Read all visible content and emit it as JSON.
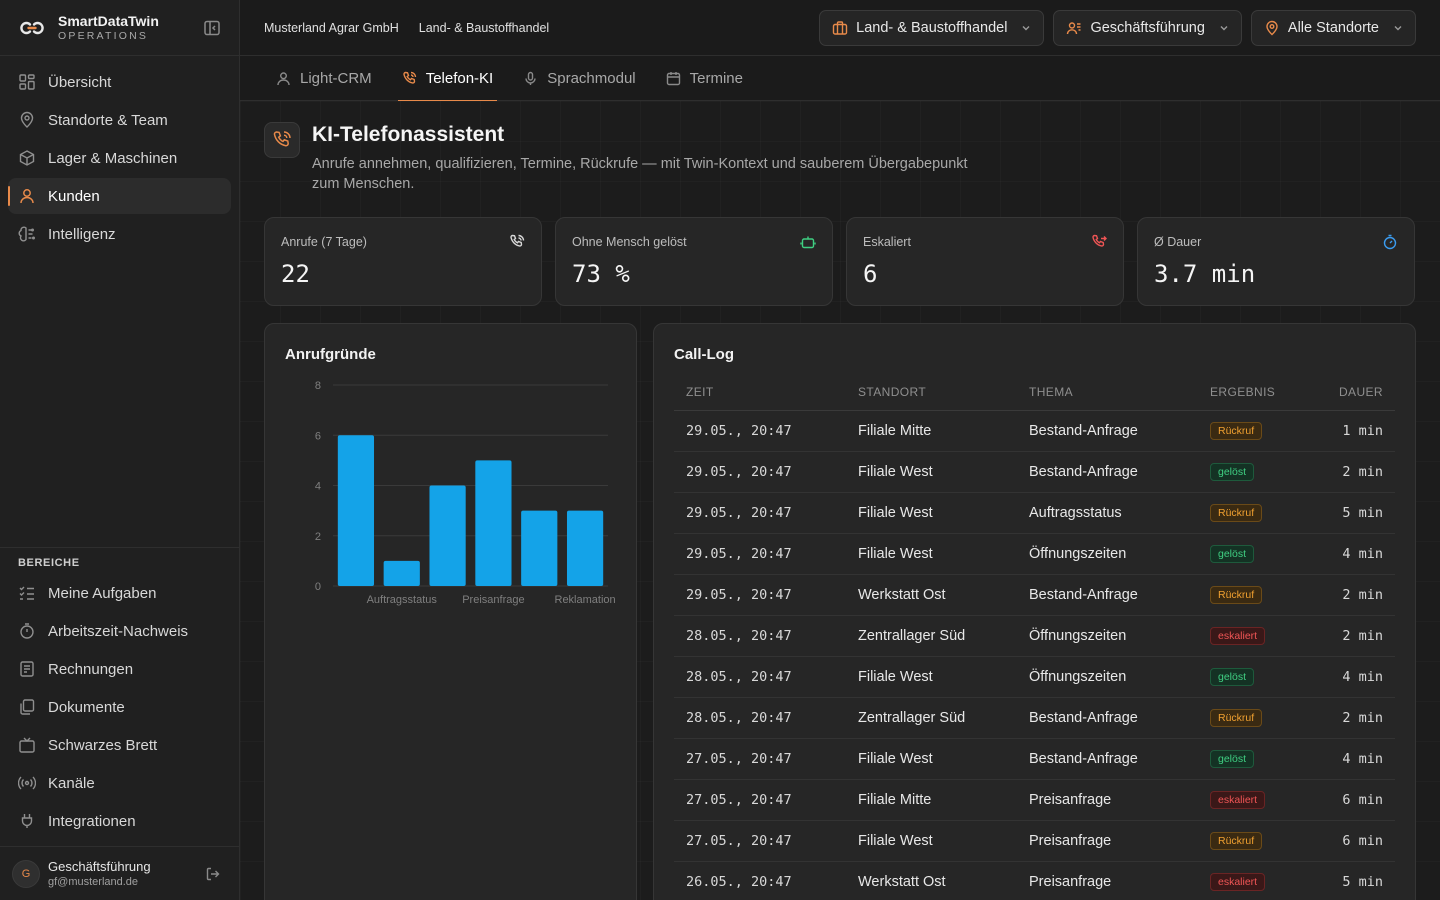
{
  "brand": {
    "name": "SmartDataTwin",
    "sub": "OPERATIONS"
  },
  "sidebar": {
    "items": [
      {
        "label": "Übersicht",
        "icon": "grid-icon"
      },
      {
        "label": "Standorte & Team",
        "icon": "map-pin-icon"
      },
      {
        "label": "Lager & Maschinen",
        "icon": "box-icon"
      },
      {
        "label": "Kunden",
        "icon": "user-icon",
        "active": true
      },
      {
        "label": "Intelligenz",
        "icon": "brain-icon"
      }
    ],
    "section_label": "BEREICHE",
    "section_items": [
      {
        "label": "Meine Aufgaben",
        "icon": "checklist-icon"
      },
      {
        "label": "Arbeitszeit-Nachweis",
        "icon": "stopwatch-icon"
      },
      {
        "label": "Rechnungen",
        "icon": "receipt-icon"
      },
      {
        "label": "Dokumente",
        "icon": "documents-icon"
      },
      {
        "label": "Schwarzes Brett",
        "icon": "board-icon"
      },
      {
        "label": "Kanäle",
        "icon": "broadcast-icon"
      },
      {
        "label": "Integrationen",
        "icon": "plug-icon"
      }
    ],
    "user": {
      "initial": "G",
      "name": "Geschäftsführung",
      "email": "gf@musterland.de"
    }
  },
  "topbar": {
    "company": "Musterland Agrar GmbH",
    "branch": "Land- & Baustoffhandel",
    "filters": [
      {
        "label": "Land- & Baustoffhandel",
        "icon": "store-icon"
      },
      {
        "label": "Geschäftsführung",
        "icon": "users-icon"
      },
      {
        "label": "Alle Standorte",
        "icon": "map-pin-icon"
      }
    ]
  },
  "tabs": [
    {
      "label": "Light-CRM",
      "icon": "user-icon"
    },
    {
      "label": "Telefon-KI",
      "icon": "phone-icon",
      "active": true
    },
    {
      "label": "Sprachmodul",
      "icon": "mic-icon"
    },
    {
      "label": "Termine",
      "icon": "calendar-icon"
    }
  ],
  "page": {
    "title": "KI-Telefonassistent",
    "description": "Anrufe annehmen, qualifizieren, Termine, Rückrufe — mit Twin-Kontext und sauberem Übergabepunkt zum Menschen."
  },
  "kpis": [
    {
      "label": "Anrufe (7 Tage)",
      "value": "22",
      "icon": "phone-icon",
      "color": "#d8d8d8"
    },
    {
      "label": "Ohne Mensch gelöst",
      "value": "73 %",
      "icon": "bot-icon",
      "color": "#3fcf82"
    },
    {
      "label": "Eskaliert",
      "value": "6",
      "icon": "phone-forward-icon",
      "color": "#ef5555"
    },
    {
      "label": "Ø Dauer",
      "value": "3.7 min",
      "icon": "timer-icon",
      "color": "#3b9cf0"
    }
  ],
  "chart": {
    "title": "Anrufgründe"
  },
  "chart_data": {
    "type": "bar",
    "categories": [
      "",
      "Auftragsstatus",
      "",
      "Preisanfrage",
      "",
      "Reklamation"
    ],
    "values": [
      6,
      1,
      4,
      5,
      3,
      3
    ],
    "ylim": [
      0,
      8
    ],
    "yticks": [
      0,
      2,
      4,
      6,
      8
    ],
    "color": "#14a3e8",
    "grid": true
  },
  "log": {
    "title": "Call-Log",
    "columns": [
      "ZEIT",
      "STANDORT",
      "THEMA",
      "ERGEBNIS",
      "DAUER"
    ],
    "rows": [
      [
        "29.05., 20:47",
        "Filiale Mitte",
        "Bestand-Anfrage",
        "Rückruf",
        "1 min"
      ],
      [
        "29.05., 20:47",
        "Filiale West",
        "Bestand-Anfrage",
        "gelöst",
        "2 min"
      ],
      [
        "29.05., 20:47",
        "Filiale West",
        "Auftragsstatus",
        "Rückruf",
        "5 min"
      ],
      [
        "29.05., 20:47",
        "Filiale West",
        "Öffnungszeiten",
        "gelöst",
        "4 min"
      ],
      [
        "29.05., 20:47",
        "Werkstatt Ost",
        "Bestand-Anfrage",
        "Rückruf",
        "2 min"
      ],
      [
        "28.05., 20:47",
        "Zentrallager Süd",
        "Öffnungszeiten",
        "eskaliert",
        "2 min"
      ],
      [
        "28.05., 20:47",
        "Filiale West",
        "Öffnungszeiten",
        "gelöst",
        "4 min"
      ],
      [
        "28.05., 20:47",
        "Zentrallager Süd",
        "Bestand-Anfrage",
        "Rückruf",
        "2 min"
      ],
      [
        "27.05., 20:47",
        "Filiale West",
        "Bestand-Anfrage",
        "gelöst",
        "4 min"
      ],
      [
        "27.05., 20:47",
        "Filiale Mitte",
        "Preisanfrage",
        "eskaliert",
        "6 min"
      ],
      [
        "27.05., 20:47",
        "Filiale West",
        "Preisanfrage",
        "Rückruf",
        "6 min"
      ],
      [
        "26.05., 20:47",
        "Werkstatt Ost",
        "Preisanfrage",
        "eskaliert",
        "5 min"
      ]
    ]
  }
}
